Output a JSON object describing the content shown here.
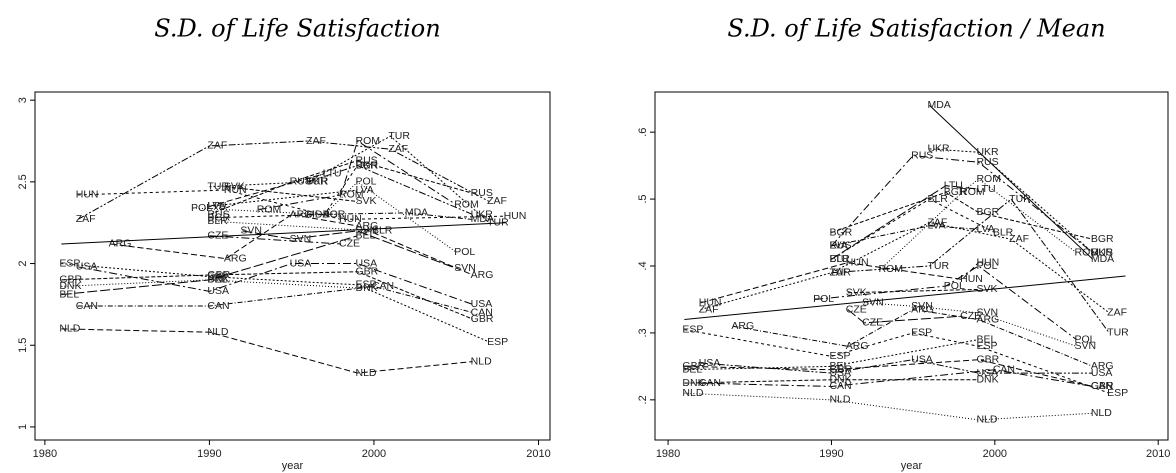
{
  "chart_data": [
    {
      "type": "line",
      "title": "S.D. of Life Satisfaction",
      "xlabel": "year",
      "xlim": [
        1979.4,
        2010.7
      ],
      "xticks": [
        1980,
        1990,
        2000,
        2010
      ],
      "ylim": [
        0.92,
        3.05
      ],
      "yticks": [
        1,
        1.5,
        2,
        2.5,
        3
      ],
      "color": "#000000",
      "series": [
        {
          "name": "NLD",
          "x": [
            1981,
            1990,
            1999,
            2006
          ],
          "values": [
            1.6,
            1.58,
            1.33,
            1.4
          ]
        },
        {
          "name": "ESP",
          "x": [
            1981,
            1990,
            1999,
            2007
          ],
          "values": [
            2.0,
            1.92,
            1.87,
            1.52
          ]
        },
        {
          "name": "USA",
          "x": [
            1982,
            1990,
            1995,
            1999,
            2006
          ],
          "values": [
            1.98,
            1.83,
            2.0,
            2.0,
            1.75
          ]
        },
        {
          "name": "GBR",
          "x": [
            1981,
            1990,
            1999,
            2006
          ],
          "values": [
            1.9,
            1.93,
            1.95,
            1.66
          ]
        },
        {
          "name": "DNK",
          "x": [
            1981,
            1990,
            1999
          ],
          "values": [
            1.86,
            1.9,
            1.85
          ]
        },
        {
          "name": "BEL",
          "x": [
            1981,
            1990,
            1999
          ],
          "values": [
            1.81,
            1.9,
            2.17
          ]
        },
        {
          "name": "CAN",
          "x": [
            1982,
            1990,
            2000,
            2006
          ],
          "values": [
            1.74,
            1.74,
            1.86,
            1.7
          ]
        },
        {
          "name": "HUN",
          "x": [
            1982,
            1991,
            1998,
            2008
          ],
          "values": [
            2.42,
            2.45,
            2.27,
            2.29
          ]
        },
        {
          "name": "ZAF",
          "x": [
            1982,
            1990,
            1996,
            2001,
            2007
          ],
          "values": [
            2.27,
            2.72,
            2.75,
            2.7,
            2.38
          ]
        },
        {
          "name": "ARG",
          "x": [
            1984,
            1991,
            1995,
            1999,
            2006
          ],
          "values": [
            2.12,
            2.03,
            2.3,
            2.23,
            1.93
          ]
        },
        {
          "name": "TUR",
          "x": [
            1990,
            1996,
            2001,
            2007
          ],
          "values": [
            2.47,
            2.5,
            2.78,
            2.25
          ]
        },
        {
          "name": "ROM",
          "x": [
            1993,
            1998,
            1999,
            2005
          ],
          "values": [
            2.33,
            2.42,
            2.75,
            2.36
          ]
        },
        {
          "name": "RUS",
          "x": [
            1990,
            1995,
            1999,
            2006
          ],
          "values": [
            2.3,
            2.5,
            2.63,
            2.43
          ]
        },
        {
          "name": "POL",
          "x": [
            1989,
            1997,
            1999,
            2005
          ],
          "values": [
            2.34,
            2.3,
            2.5,
            2.07
          ]
        },
        {
          "name": "SVN",
          "x": [
            1992,
            1995,
            1999,
            2005
          ],
          "values": [
            2.2,
            2.15,
            2.2,
            1.97
          ]
        },
        {
          "name": "MDA",
          "x": [
            1996,
            2002,
            2006
          ],
          "values": [
            2.3,
            2.31,
            2.27
          ]
        },
        {
          "name": "BGR",
          "x": [
            1990,
            1997,
            1999
          ],
          "values": [
            2.28,
            2.3,
            2.6
          ]
        },
        {
          "name": "UKR",
          "x": [
            1996,
            1999,
            2006
          ],
          "values": [
            2.5,
            2.6,
            2.3
          ]
        },
        {
          "name": "LTU",
          "x": [
            1990,
            1997
          ],
          "values": [
            2.35,
            2.55
          ]
        },
        {
          "name": "LVA",
          "x": [
            1990,
            1999
          ],
          "values": [
            2.35,
            2.45
          ]
        },
        {
          "name": "CZE",
          "x": [
            1990,
            1998
          ],
          "values": [
            2.17,
            2.12
          ]
        },
        {
          "name": "SVK",
          "x": [
            1991,
            1999
          ],
          "values": [
            2.47,
            2.38
          ]
        },
        {
          "name": "BLR",
          "x": [
            1990,
            2000
          ],
          "values": [
            2.26,
            2.2
          ]
        },
        {
          "x": [
            1981,
            2008
          ],
          "values": [
            2.12,
            2.25
          ],
          "style": "solid"
        }
      ]
    },
    {
      "type": "line",
      "title": "S.D. of Life Satisfaction / Mean",
      "xlabel": "year",
      "xlim": [
        1979.2,
        2010.6
      ],
      "xticks": [
        1980,
        1990,
        2000,
        2010
      ],
      "ylim": [
        0.14,
        0.66
      ],
      "yticks": [
        {
          "value": 0.2,
          "label": ".2"
        },
        {
          "value": 0.3,
          "label": ".3"
        },
        {
          "value": 0.4,
          "label": ".4"
        },
        {
          "value": 0.5,
          "label": ".5"
        },
        {
          "value": 0.6,
          "label": ".6"
        }
      ],
      "color": "#000000",
      "series": [
        {
          "name": "MDA",
          "x": [
            1996,
            2006
          ],
          "values": [
            0.64,
            0.41
          ],
          "style": "solid"
        },
        {
          "name": "UKR",
          "x": [
            1996,
            1999,
            2006
          ],
          "values": [
            0.575,
            0.57,
            0.42
          ]
        },
        {
          "name": "RUS",
          "x": [
            1990,
            1995,
            1999,
            2006
          ],
          "values": [
            0.43,
            0.565,
            0.555,
            0.42
          ]
        },
        {
          "name": "BGR",
          "x": [
            1990,
            1997,
            1999,
            2006
          ],
          "values": [
            0.45,
            0.51,
            0.48,
            0.44
          ]
        },
        {
          "name": "ROM",
          "x": [
            1993,
            1998,
            1999,
            2005
          ],
          "values": [
            0.395,
            0.51,
            0.53,
            0.42
          ]
        },
        {
          "name": "LTU",
          "x": [
            1990,
            1997,
            1999
          ],
          "values": [
            0.41,
            0.52,
            0.515
          ]
        },
        {
          "name": "LVA",
          "x": [
            1990,
            1996,
            1999
          ],
          "values": [
            0.43,
            0.46,
            0.455
          ]
        },
        {
          "name": "BLR",
          "x": [
            1990,
            1996,
            2000
          ],
          "values": [
            0.41,
            0.5,
            0.45
          ]
        },
        {
          "name": "TUR",
          "x": [
            1990,
            1996,
            2001,
            2007
          ],
          "values": [
            0.39,
            0.4,
            0.5,
            0.3
          ]
        },
        {
          "name": "HUN",
          "x": [
            1982,
            1991,
            1998,
            1999
          ],
          "values": [
            0.345,
            0.405,
            0.38,
            0.405
          ]
        },
        {
          "name": "ZAF",
          "x": [
            1982,
            1990,
            1996,
            2001,
            2007
          ],
          "values": [
            0.335,
            0.39,
            0.465,
            0.44,
            0.33
          ]
        },
        {
          "name": "POL",
          "x": [
            1989,
            1997,
            1999,
            2005
          ],
          "values": [
            0.35,
            0.37,
            0.4,
            0.29
          ]
        },
        {
          "name": "SVK",
          "x": [
            1991,
            1999
          ],
          "values": [
            0.36,
            0.365
          ]
        },
        {
          "name": "SVN",
          "x": [
            1992,
            1995,
            1999,
            2005
          ],
          "values": [
            0.345,
            0.34,
            0.33,
            0.28
          ]
        },
        {
          "name": "CZE",
          "x": [
            1991,
            1992,
            1998
          ],
          "values": [
            0.335,
            0.315,
            0.325
          ]
        },
        {
          "name": "ARG",
          "x": [
            1984,
            1991,
            1995,
            1999,
            2006
          ],
          "values": [
            0.31,
            0.28,
            0.335,
            0.32,
            0.25
          ]
        },
        {
          "name": "ESP",
          "x": [
            1981,
            1990,
            1995,
            1999,
            2007
          ],
          "values": [
            0.305,
            0.265,
            0.3,
            0.28,
            0.21
          ]
        },
        {
          "name": "USA",
          "x": [
            1982,
            1990,
            1995,
            1999,
            2006
          ],
          "values": [
            0.255,
            0.24,
            0.26,
            0.24,
            0.24
          ]
        },
        {
          "name": "GBR",
          "x": [
            1981,
            1990,
            1999,
            2006
          ],
          "values": [
            0.25,
            0.245,
            0.26,
            0.22
          ]
        },
        {
          "name": "BEL",
          "x": [
            1981,
            1990,
            1999
          ],
          "values": [
            0.245,
            0.25,
            0.29
          ]
        },
        {
          "name": "CAN",
          "x": [
            1982,
            1990,
            2000,
            2006
          ],
          "values": [
            0.225,
            0.22,
            0.245,
            0.22
          ]
        },
        {
          "name": "DNK",
          "x": [
            1981,
            1990,
            1999
          ],
          "values": [
            0.225,
            0.23,
            0.23
          ]
        },
        {
          "name": "NLD",
          "x": [
            1981,
            1990,
            1999,
            2006
          ],
          "values": [
            0.21,
            0.2,
            0.17,
            0.18
          ]
        },
        {
          "x": [
            1981,
            2008
          ],
          "values": [
            0.32,
            0.385
          ],
          "style": "solid"
        }
      ]
    }
  ]
}
